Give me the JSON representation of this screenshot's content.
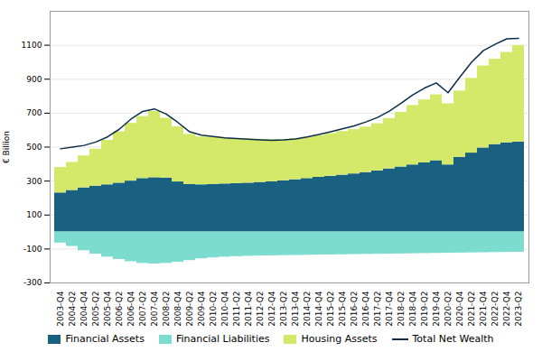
{
  "chart_data": {
    "type": "bar",
    "stacked": true,
    "grid": true,
    "legend": "bottom",
    "ylabel": "€ Billion",
    "categories": [
      "2003-Q4",
      "2004-Q2",
      "2004-Q4",
      "2005-Q2",
      "2005-Q4",
      "2006-Q2",
      "2006-Q4",
      "2007-Q2",
      "2007-Q4",
      "2008-Q2",
      "2008-Q4",
      "2009-Q2",
      "2009-Q4",
      "2010-Q2",
      "2010-Q4",
      "2011-Q2",
      "2011-Q4",
      "2012-Q2",
      "2012-Q4",
      "2013-Q2",
      "2013-Q4",
      "2014-Q2",
      "2014-Q4",
      "2015-Q2",
      "2015-Q4",
      "2016-Q2",
      "2016-Q4",
      "2017-Q2",
      "2017-Q4",
      "2018-Q2",
      "2018-Q4",
      "2019-Q2",
      "2019-Q4",
      "2020-Q2",
      "2020-Q4",
      "2021-Q2",
      "2021-Q4",
      "2022-Q2",
      "2022-Q4",
      "2023-Q2"
    ],
    "series": [
      {
        "name": "Financial Assets",
        "type": "bar",
        "color": "#1a6080",
        "values": [
          230,
          245,
          260,
          270,
          278,
          288,
          300,
          315,
          320,
          318,
          295,
          280,
          278,
          280,
          283,
          285,
          288,
          292,
          296,
          302,
          308,
          315,
          322,
          328,
          335,
          342,
          350,
          360,
          372,
          383,
          395,
          407,
          420,
          395,
          440,
          465,
          495,
          515,
          525,
          530
        ]
      },
      {
        "name": "Financial Liabilities",
        "type": "bar",
        "color": "#7ddcd0",
        "values": [
          -65,
          -85,
          -110,
          -130,
          -148,
          -162,
          -175,
          -185,
          -188,
          -185,
          -178,
          -168,
          -158,
          -152,
          -148,
          -145,
          -143,
          -141,
          -140,
          -139,
          -138,
          -137,
          -136,
          -135,
          -134,
          -133,
          -132,
          -131,
          -130,
          -129,
          -128,
          -127,
          -126,
          -125,
          -124,
          -123,
          -122,
          -121,
          -120,
          -119
        ]
      },
      {
        "name": "Housing Assets",
        "type": "bar",
        "color": "#d4e86a",
        "values": [
          150,
          165,
          188,
          218,
          262,
          302,
          340,
          365,
          390,
          352,
          325,
          295,
          282,
          278,
          270,
          265,
          260,
          254,
          248,
          243,
          242,
          243,
          246,
          252,
          257,
          261,
          268,
          278,
          296,
          322,
          350,
          371,
          388,
          360,
          390,
          440,
          483,
          503,
          533,
          568
        ]
      },
      {
        "name": "Total Net Wealth",
        "type": "line",
        "color": "#0d2d4a",
        "values": [
          490,
          500,
          510,
          530,
          560,
          605,
          665,
          710,
          725,
          695,
          645,
          590,
          570,
          562,
          555,
          550,
          546,
          543,
          540,
          542,
          548,
          560,
          574,
          590,
          608,
          625,
          648,
          675,
          712,
          758,
          808,
          848,
          878,
          820,
          912,
          1000,
          1068,
          1105,
          1138,
          1140
        ]
      }
    ],
    "ylim": [
      -300,
      1300
    ],
    "yticks": [
      -300,
      -100,
      100,
      300,
      500,
      700,
      900,
      1100
    ]
  }
}
